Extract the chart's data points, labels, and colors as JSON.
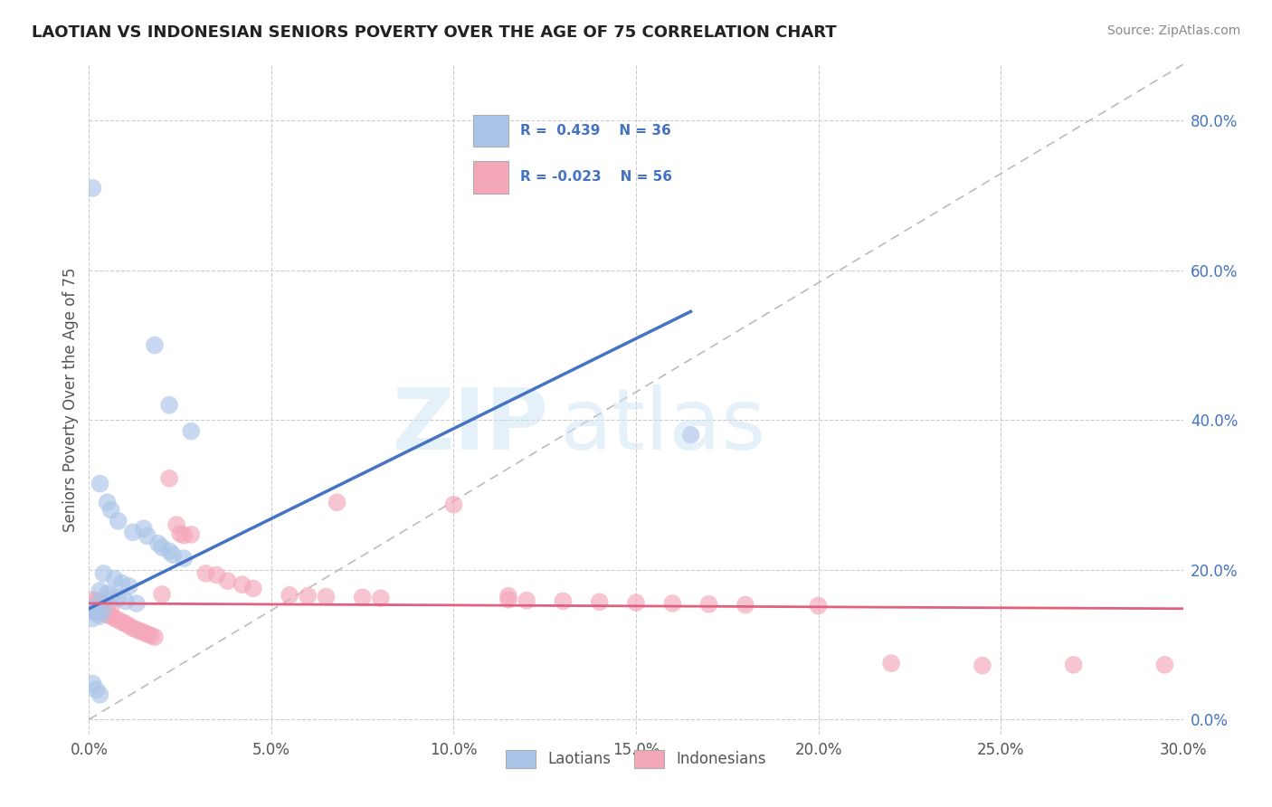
{
  "title": "LAOTIAN VS INDONESIAN SENIORS POVERTY OVER THE AGE OF 75 CORRELATION CHART",
  "source": "Source: ZipAtlas.com",
  "ylabel": "Seniors Poverty Over the Age of 75",
  "xlim": [
    0.0,
    0.3
  ],
  "ylim": [
    -0.02,
    0.875
  ],
  "laotian_R": 0.439,
  "laotian_N": 36,
  "indonesian_R": -0.023,
  "indonesian_N": 56,
  "laotian_color": "#aac4e8",
  "indonesian_color": "#f4a7b9",
  "laotian_line_color": "#4472c4",
  "indonesian_line_color": "#e06080",
  "diagonal_color": "#bbbbbb",
  "background_color": "#ffffff",
  "watermark_zip": "ZIP",
  "watermark_atlas": "atlas",
  "laotian_line_x": [
    0.0,
    0.165
  ],
  "laotian_line_y": [
    0.148,
    0.545
  ],
  "indonesian_line_x": [
    0.0,
    0.3
  ],
  "indonesian_line_y": [
    0.155,
    0.148
  ],
  "laotian_points": [
    [
      0.001,
      0.71
    ],
    [
      0.018,
      0.5
    ],
    [
      0.022,
      0.42
    ],
    [
      0.028,
      0.385
    ],
    [
      0.003,
      0.315
    ],
    [
      0.005,
      0.29
    ],
    [
      0.006,
      0.28
    ],
    [
      0.008,
      0.265
    ],
    [
      0.015,
      0.255
    ],
    [
      0.012,
      0.25
    ],
    [
      0.016,
      0.245
    ],
    [
      0.019,
      0.235
    ],
    [
      0.02,
      0.23
    ],
    [
      0.022,
      0.225
    ],
    [
      0.023,
      0.22
    ],
    [
      0.026,
      0.215
    ],
    [
      0.004,
      0.195
    ],
    [
      0.007,
      0.188
    ],
    [
      0.009,
      0.182
    ],
    [
      0.011,
      0.178
    ],
    [
      0.003,
      0.172
    ],
    [
      0.005,
      0.168
    ],
    [
      0.006,
      0.165
    ],
    [
      0.008,
      0.162
    ],
    [
      0.01,
      0.158
    ],
    [
      0.013,
      0.155
    ],
    [
      0.002,
      0.152
    ],
    [
      0.004,
      0.148
    ],
    [
      0.001,
      0.145
    ],
    [
      0.002,
      0.142
    ],
    [
      0.003,
      0.138
    ],
    [
      0.001,
      0.135
    ],
    [
      0.001,
      0.048
    ],
    [
      0.002,
      0.04
    ],
    [
      0.003,
      0.033
    ],
    [
      0.165,
      0.38
    ]
  ],
  "indonesian_points": [
    [
      0.001,
      0.16
    ],
    [
      0.002,
      0.158
    ],
    [
      0.003,
      0.156
    ],
    [
      0.004,
      0.154
    ],
    [
      0.005,
      0.152
    ],
    [
      0.006,
      0.15
    ],
    [
      0.001,
      0.148
    ],
    [
      0.002,
      0.146
    ],
    [
      0.003,
      0.144
    ],
    [
      0.004,
      0.142
    ],
    [
      0.005,
      0.14
    ],
    [
      0.006,
      0.138
    ],
    [
      0.007,
      0.135
    ],
    [
      0.008,
      0.133
    ],
    [
      0.009,
      0.13
    ],
    [
      0.01,
      0.128
    ],
    [
      0.011,
      0.125
    ],
    [
      0.012,
      0.122
    ],
    [
      0.013,
      0.12
    ],
    [
      0.014,
      0.118
    ],
    [
      0.015,
      0.116
    ],
    [
      0.016,
      0.114
    ],
    [
      0.017,
      0.112
    ],
    [
      0.018,
      0.11
    ],
    [
      0.022,
      0.322
    ],
    [
      0.024,
      0.26
    ],
    [
      0.025,
      0.248
    ],
    [
      0.026,
      0.246
    ],
    [
      0.028,
      0.247
    ],
    [
      0.032,
      0.195
    ],
    [
      0.035,
      0.193
    ],
    [
      0.038,
      0.185
    ],
    [
      0.042,
      0.18
    ],
    [
      0.045,
      0.175
    ],
    [
      0.02,
      0.167
    ],
    [
      0.055,
      0.166
    ],
    [
      0.06,
      0.165
    ],
    [
      0.065,
      0.164
    ],
    [
      0.068,
      0.29
    ],
    [
      0.075,
      0.163
    ],
    [
      0.08,
      0.162
    ],
    [
      0.1,
      0.287
    ],
    [
      0.115,
      0.16
    ],
    [
      0.12,
      0.159
    ],
    [
      0.13,
      0.158
    ],
    [
      0.14,
      0.157
    ],
    [
      0.15,
      0.156
    ],
    [
      0.16,
      0.155
    ],
    [
      0.17,
      0.154
    ],
    [
      0.18,
      0.153
    ],
    [
      0.2,
      0.152
    ],
    [
      0.22,
      0.075
    ],
    [
      0.245,
      0.072
    ],
    [
      0.115,
      0.165
    ],
    [
      0.27,
      0.073
    ],
    [
      0.295,
      0.073
    ]
  ]
}
